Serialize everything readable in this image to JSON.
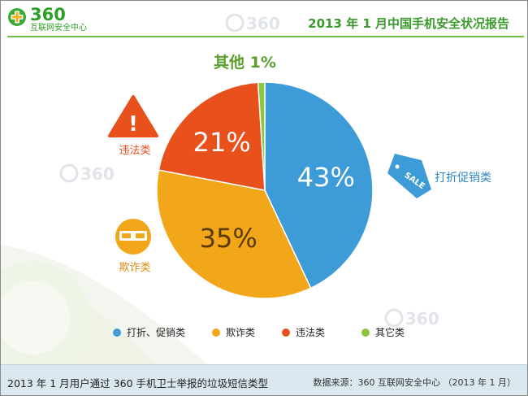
{
  "header": {
    "logo_text": "360",
    "logo_subtitle": "互联网安全中心",
    "title": "2013 年 1 月中国手机安全状况报告"
  },
  "watermark_text": "360",
  "chart_data": {
    "type": "pie",
    "categories": [
      "打折、促销类",
      "欺诈类",
      "违法类",
      "其它类"
    ],
    "values": [
      43,
      35,
      21,
      1
    ],
    "percent_labels": [
      "43%",
      "35%",
      "21%",
      "其他 1%"
    ],
    "colors": [
      "#3d9bd8",
      "#f2a71b",
      "#e8501c",
      "#8cc63f"
    ],
    "slice_callouts": [
      {
        "text": "打折促销类",
        "icon": "sale-tag-icon"
      },
      {
        "text": "欺诈类",
        "icon": "masked-face-icon"
      },
      {
        "text": "违法类",
        "icon": "warning-triangle-icon"
      }
    ],
    "icon_texts": {
      "sale_tag": "SALE",
      "warning": "!"
    },
    "legend": [
      "打折、促销类",
      "欺诈类",
      "违法类",
      "其它类"
    ],
    "legend_placement": "bottom"
  },
  "footer": {
    "caption": "2013 年 1 月用户通过 360 手机卫士举报的垃圾短信类型",
    "source": "数据来源：360 互联网安全中心 （2013 年 1 月）"
  }
}
